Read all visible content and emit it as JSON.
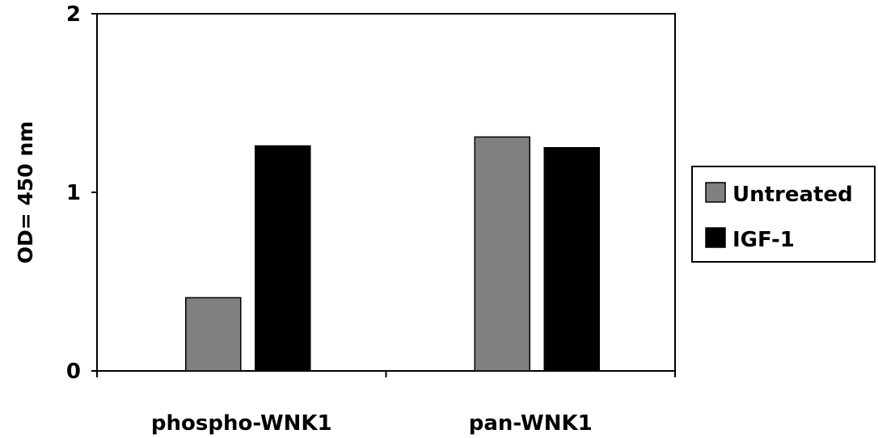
{
  "chart_data": {
    "type": "bar",
    "title": "",
    "xlabel": "",
    "ylabel": "OD= 450 nm",
    "categories": [
      "phospho-WNK1",
      "pan-WNK1"
    ],
    "series": [
      {
        "name": "Untreated",
        "values": [
          0.41,
          1.31
        ],
        "color": "#808080"
      },
      {
        "name": "IGF-1",
        "values": [
          1.26,
          1.25
        ],
        "color": "#000000"
      }
    ],
    "ylim": [
      0,
      2
    ],
    "yticks": [
      0,
      1,
      2
    ],
    "grid": false,
    "legend": "right"
  }
}
